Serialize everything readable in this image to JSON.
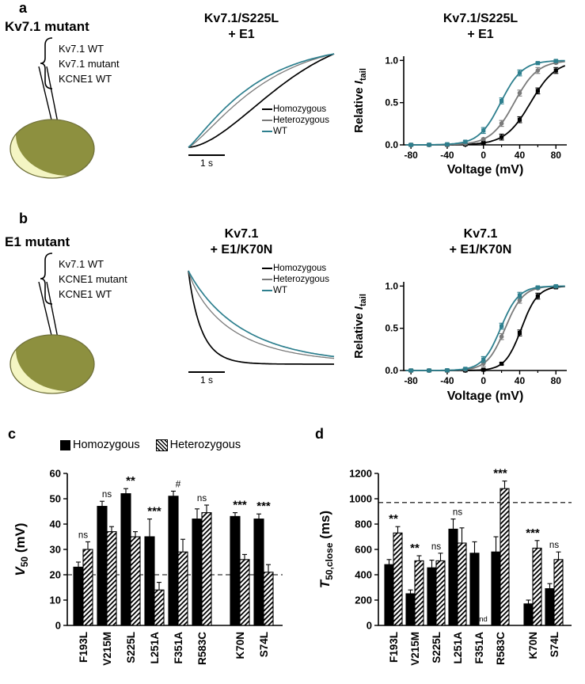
{
  "colors": {
    "homozygous": "#000000",
    "heterozygous": "#7a7a7a",
    "wt": "#2d7f8e",
    "oocyte_dark": "#8d903f",
    "oocyte_light": "#f4f5c3"
  },
  "panels": {
    "a": {
      "letter": "a",
      "schematic": {
        "title": "Kv7.1 mutant",
        "items": [
          "Kv7.1 WT",
          "Kv7.1 mutant",
          "KCNE1 WT"
        ]
      }
    },
    "b": {
      "letter": "b",
      "schematic": {
        "title": "E1 mutant",
        "items": [
          "Kv7.1 WT",
          "KCNE1 mutant",
          "KCNE1 WT"
        ]
      }
    },
    "c": {
      "letter": "c"
    },
    "d": {
      "letter": "d"
    }
  },
  "chart_data": [
    {
      "id": "a-traces",
      "type": "line",
      "kind": "activation",
      "title_lines": [
        "Kv7.1/S225L",
        "+ E1"
      ],
      "scale_bar_label": "1 s",
      "series": [
        {
          "name": "Homozygous",
          "color": "#000000",
          "tau": 0.75,
          "p": 1.7
        },
        {
          "name": "Heterozygous",
          "color": "#7a7a7a",
          "tau": 0.55,
          "p": 1.25
        },
        {
          "name": "WT",
          "color": "#2d7f8e",
          "tau": 0.48,
          "p": 1.15
        }
      ]
    },
    {
      "id": "a-gv",
      "type": "scatter",
      "subtype": "boltzmann",
      "title_lines": [
        "Kv7.1/S225L",
        "+ E1"
      ],
      "xlabel": "Voltage (mV)",
      "ylabel": {
        "prefix": "Relative ",
        "symbol": "I",
        "sub": "tail"
      },
      "xlim": [
        -88,
        92
      ],
      "ylim": [
        0,
        1.05
      ],
      "xticks": [
        -80,
        -40,
        0,
        40,
        80
      ],
      "xminor": [
        -60,
        -20,
        20,
        60
      ],
      "yticks": [
        "0.0",
        "0.5",
        "1.0"
      ],
      "x_points": [
        -80,
        -60,
        -40,
        -20,
        0,
        20,
        40,
        60,
        80
      ],
      "series": [
        {
          "name": "Homozygous",
          "color": "#000000",
          "v50": 52,
          "slope": 14,
          "marker": "square"
        },
        {
          "name": "Heterozygous",
          "color": "#7a7a7a",
          "v50": 34,
          "slope": 13,
          "marker": "circle"
        },
        {
          "name": "WT",
          "color": "#2d7f8e",
          "v50": 19,
          "slope": 12,
          "marker": "square"
        }
      ]
    },
    {
      "id": "b-traces",
      "type": "line",
      "kind": "deactivation",
      "title_lines": [
        "Kv7.1",
        "+ E1/K70N"
      ],
      "scale_bar_label": "1 s",
      "series": [
        {
          "name": "Homozygous",
          "color": "#000000",
          "tau": 0.09,
          "p": 0.95
        },
        {
          "name": "Heterozygous",
          "color": "#7a7a7a",
          "tau": 0.3,
          "p": 0.85
        },
        {
          "name": "WT",
          "color": "#2d7f8e",
          "tau": 0.38,
          "p": 0.95
        }
      ]
    },
    {
      "id": "b-gv",
      "type": "scatter",
      "subtype": "boltzmann",
      "title_lines": [
        "Kv7.1",
        "+ E1/K70N"
      ],
      "xlabel": "Voltage (mV)",
      "ylabel": {
        "prefix": "Relative ",
        "symbol": "I",
        "sub": "tail"
      },
      "xlim": [
        -88,
        92
      ],
      "ylim": [
        0,
        1.05
      ],
      "xticks": [
        -80,
        -40,
        0,
        40,
        80
      ],
      "xminor": [
        -60,
        -20,
        20,
        60
      ],
      "yticks": [
        "0.0",
        "0.5",
        "1.0"
      ],
      "x_points": [
        -80,
        -60,
        -40,
        -20,
        0,
        20,
        40,
        60,
        80
      ],
      "series": [
        {
          "name": "Homozygous",
          "color": "#000000",
          "v50": 42,
          "slope": 9,
          "marker": "square"
        },
        {
          "name": "Heterozygous",
          "color": "#7a7a7a",
          "v50": 24,
          "slope": 10,
          "marker": "circle"
        },
        {
          "name": "WT",
          "color": "#2d7f8e",
          "v50": 19,
          "slope": 10,
          "marker": "square"
        }
      ]
    },
    {
      "id": "c",
      "type": "bar",
      "ylabel": {
        "main": "V",
        "sub": "50",
        "rest": " (mV)"
      },
      "ylim": [
        0,
        60
      ],
      "yticks": [
        0,
        10,
        20,
        30,
        40,
        50,
        60
      ],
      "dashed_line": 20,
      "group_split": 6,
      "categories": [
        "F193L",
        "V215M",
        "S225L",
        "L251A",
        "F351A",
        "R583C",
        "K70N",
        "S74L"
      ],
      "series": [
        {
          "name": "Homozygous",
          "style": "solid",
          "values": [
            23,
            47,
            52,
            35,
            51,
            42,
            43,
            42
          ],
          "errors": [
            2,
            2,
            2,
            7,
            2,
            4,
            1.5,
            2
          ]
        },
        {
          "name": "Heterozygous",
          "style": "hatched",
          "values": [
            30,
            37,
            35,
            14,
            29,
            44.5,
            26,
            21
          ],
          "errors": [
            3,
            2,
            2,
            3,
            5,
            3,
            2,
            3
          ]
        }
      ],
      "significance": [
        "ns",
        "ns",
        "**",
        "***",
        "#",
        "ns",
        "***",
        "***"
      ]
    },
    {
      "id": "d",
      "type": "bar",
      "ylabel": {
        "main": "T",
        "sub": "50,close",
        "rest": " (ms)"
      },
      "ylim": [
        0,
        1200
      ],
      "yticks": [
        0,
        200,
        400,
        600,
        800,
        1000,
        1200
      ],
      "dashed_line": 970,
      "group_split": 6,
      "categories": [
        "F193L",
        "V215M",
        "S225L",
        "L251A",
        "F351A",
        "R583C",
        "K70N",
        "S74L"
      ],
      "series": [
        {
          "name": "Homozygous",
          "style": "solid",
          "values": [
            480,
            250,
            455,
            760,
            570,
            580,
            170,
            290
          ],
          "errors": [
            40,
            30,
            60,
            80,
            90,
            120,
            30,
            40
          ]
        },
        {
          "name": "Heterozygous",
          "style": "hatched",
          "values": [
            730,
            510,
            510,
            650,
            null,
            1080,
            610,
            520
          ],
          "errors": [
            50,
            40,
            60,
            120,
            null,
            60,
            60,
            60
          ]
        }
      ],
      "significance": [
        "**",
        "**",
        "ns",
        "ns",
        "",
        "***",
        "***",
        "ns"
      ],
      "nd_label": "nd"
    }
  ]
}
